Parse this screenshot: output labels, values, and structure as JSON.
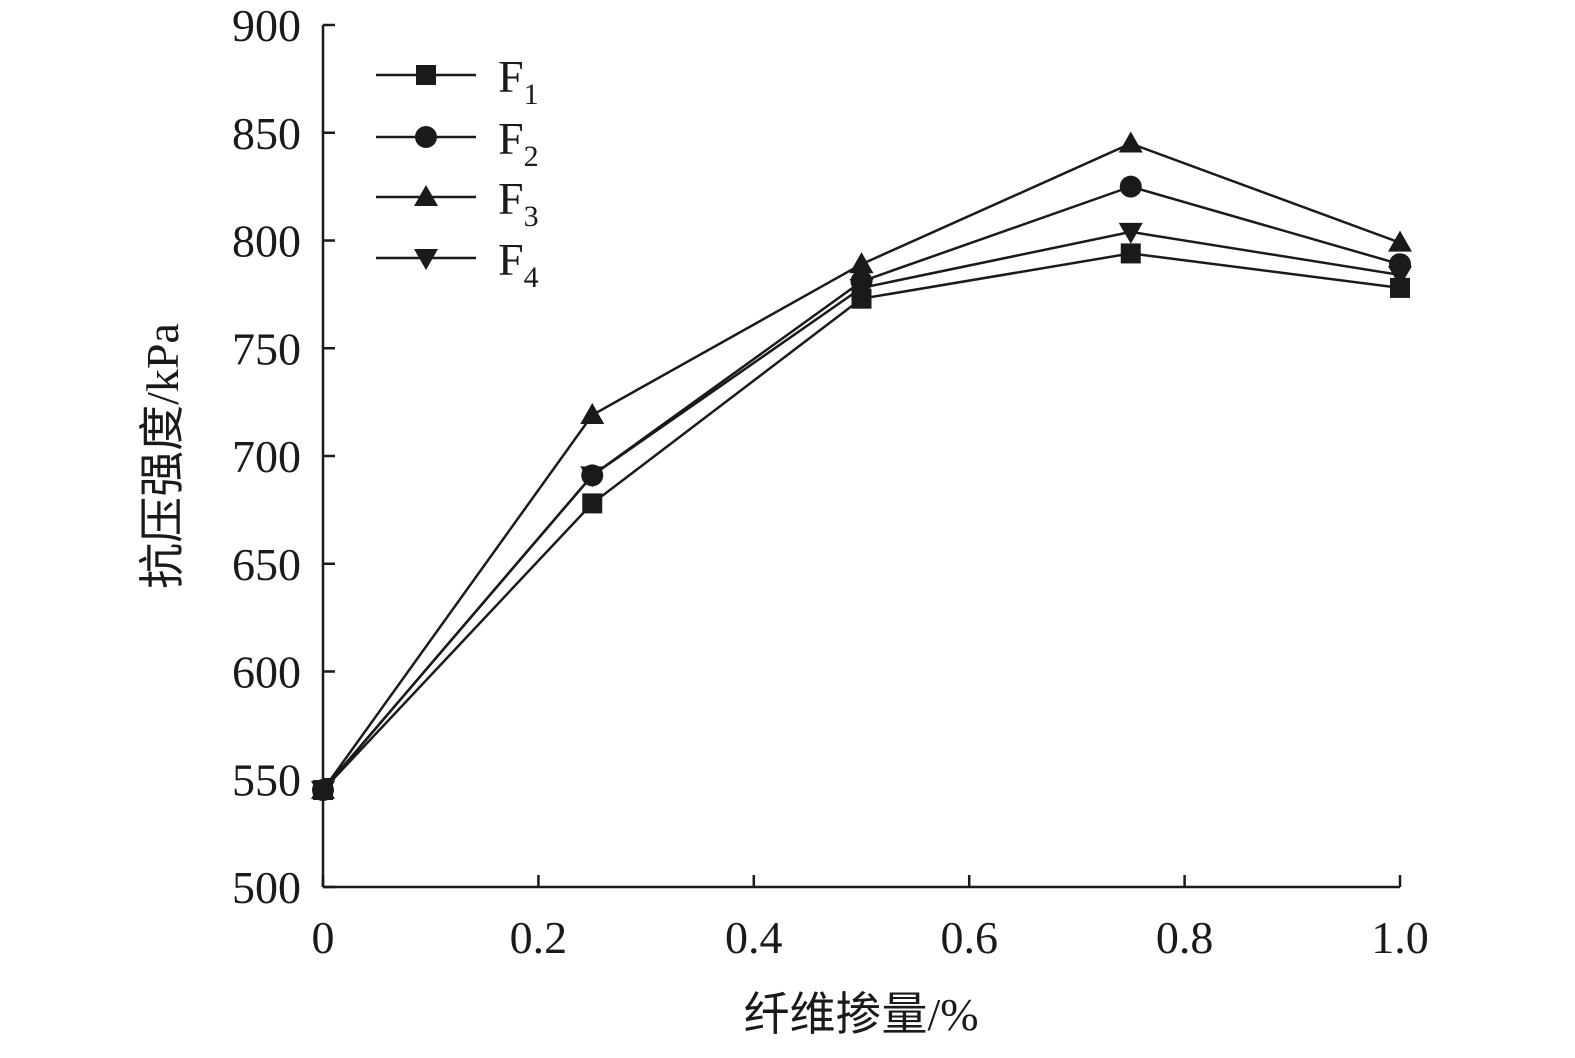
{
  "chart_data": {
    "type": "line",
    "title": "",
    "xlabel": "纤维掺量/%",
    "ylabel": "抗压强度/kPa",
    "xlim": [
      0,
      1.0
    ],
    "ylim": [
      500,
      900
    ],
    "x_ticks": [
      "0",
      "0.2",
      "0.4",
      "0.6",
      "0.8",
      "1.0"
    ],
    "y_ticks": [
      "500",
      "550",
      "600",
      "650",
      "700",
      "750",
      "800",
      "850",
      "900"
    ],
    "x": [
      0,
      0.25,
      0.5,
      0.75,
      1.0
    ],
    "legend_position": "top-left",
    "grid": false,
    "series": [
      {
        "name": "F",
        "subscript": "1",
        "marker": "square",
        "values": [
          545,
          678,
          773,
          794,
          778
        ]
      },
      {
        "name": "F",
        "subscript": "2",
        "marker": "circle",
        "values": [
          545,
          691,
          781,
          825,
          789
        ]
      },
      {
        "name": "F",
        "subscript": "3",
        "marker": "triangle-up",
        "values": [
          545,
          719,
          789,
          845,
          799
        ]
      },
      {
        "name": "F",
        "subscript": "4",
        "marker": "triangle-down",
        "values": [
          545,
          691,
          778,
          804,
          784
        ]
      }
    ],
    "colors": {
      "line": "#1a1a1a",
      "marker": "#1a1a1a"
    }
  }
}
